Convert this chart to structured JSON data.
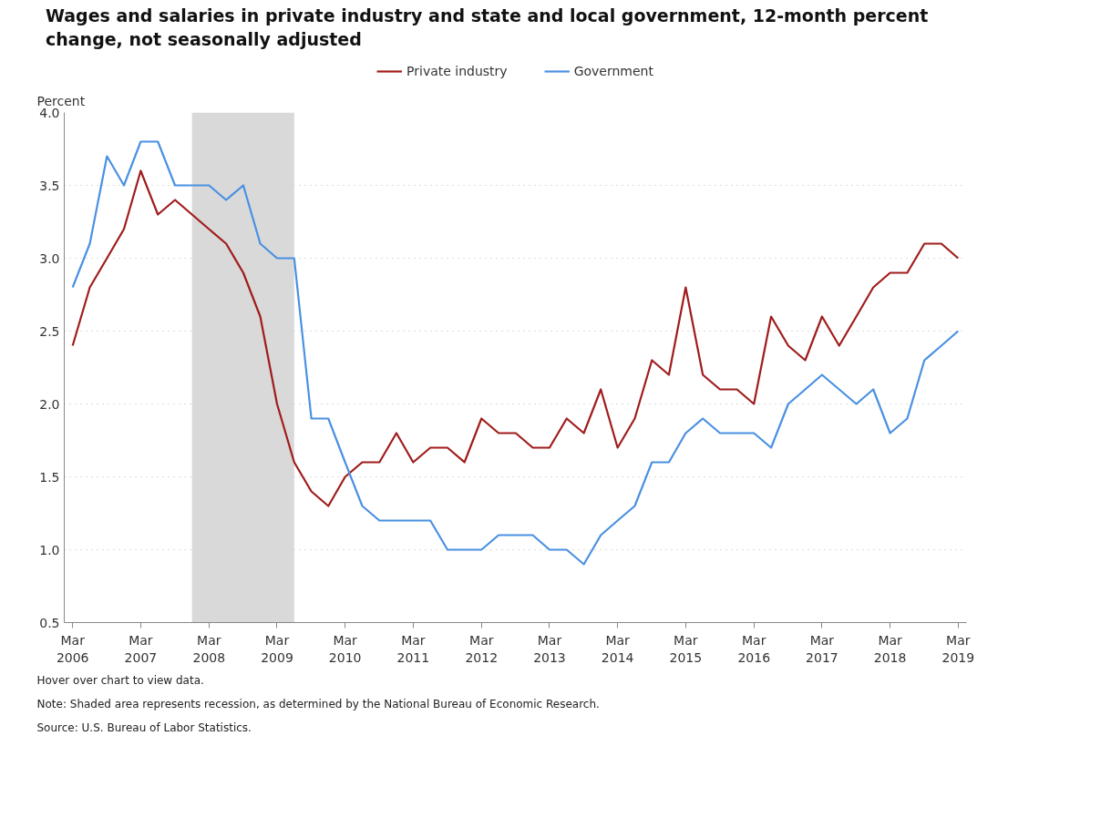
{
  "chart_data": {
    "type": "line",
    "title": "Wages and salaries in private industry and state and local government, 12-month percent change, not seasonally adjusted",
    "ylabel": "Percent",
    "x": [
      "2006-03",
      "2006-06",
      "2006-09",
      "2006-12",
      "2007-03",
      "2007-06",
      "2007-09",
      "2007-12",
      "2008-03",
      "2008-06",
      "2008-09",
      "2008-12",
      "2009-03",
      "2009-06",
      "2009-09",
      "2009-12",
      "2010-03",
      "2010-06",
      "2010-09",
      "2010-12",
      "2011-03",
      "2011-06",
      "2011-09",
      "2011-12",
      "2012-03",
      "2012-06",
      "2012-09",
      "2012-12",
      "2013-03",
      "2013-06",
      "2013-09",
      "2013-12",
      "2014-03",
      "2014-06",
      "2014-09",
      "2014-12",
      "2015-03",
      "2015-06",
      "2015-09",
      "2015-12",
      "2016-03",
      "2016-06",
      "2016-09",
      "2016-12",
      "2017-03",
      "2017-06",
      "2017-09",
      "2017-12",
      "2018-03",
      "2018-06",
      "2018-09",
      "2018-12",
      "2019-03"
    ],
    "series": [
      {
        "name": "Private industry",
        "color": "#a01c1c",
        "values": [
          2.4,
          2.8,
          3.0,
          3.2,
          3.6,
          3.3,
          3.4,
          3.3,
          3.2,
          3.1,
          2.9,
          2.6,
          2.0,
          1.6,
          1.4,
          1.3,
          1.5,
          1.6,
          1.6,
          1.8,
          1.6,
          1.7,
          1.7,
          1.6,
          1.9,
          1.8,
          1.8,
          1.7,
          1.7,
          1.9,
          1.8,
          2.1,
          1.7,
          1.9,
          2.3,
          2.2,
          2.8,
          2.2,
          2.1,
          2.1,
          2.0,
          2.6,
          2.4,
          2.3,
          2.6,
          2.4,
          2.6,
          2.8,
          2.9,
          2.9,
          3.1,
          3.1,
          3.0
        ]
      },
      {
        "name": "Government",
        "color": "#4a90e2",
        "values": [
          2.8,
          3.1,
          3.7,
          3.5,
          3.8,
          3.8,
          3.5,
          3.5,
          3.5,
          3.4,
          3.5,
          3.1,
          3.0,
          3.0,
          1.9,
          1.9,
          1.6,
          1.3,
          1.2,
          1.2,
          1.2,
          1.2,
          1.0,
          1.0,
          1.0,
          1.1,
          1.1,
          1.1,
          1.0,
          1.0,
          0.9,
          1.1,
          1.2,
          1.3,
          1.6,
          1.6,
          1.8,
          1.9,
          1.8,
          1.8,
          1.8,
          1.7,
          2.0,
          2.1,
          2.2,
          2.1,
          2.0,
          2.1,
          1.8,
          1.9,
          2.3,
          2.4,
          2.5
        ]
      }
    ],
    "xlim": [
      "2006-01-15",
      "2019-04-15"
    ],
    "xticks": [
      {
        "value": "2006-03",
        "label": "Mar\n2006"
      },
      {
        "value": "2007-03",
        "label": "Mar\n2007"
      },
      {
        "value": "2008-03",
        "label": "Mar\n2008"
      },
      {
        "value": "2009-03",
        "label": "Mar\n2009"
      },
      {
        "value": "2010-03",
        "label": "Mar\n2010"
      },
      {
        "value": "2011-03",
        "label": "Mar\n2011"
      },
      {
        "value": "2012-03",
        "label": "Mar\n2012"
      },
      {
        "value": "2013-03",
        "label": "Mar\n2013"
      },
      {
        "value": "2014-03",
        "label": "Mar\n2014"
      },
      {
        "value": "2015-03",
        "label": "Mar\n2015"
      },
      {
        "value": "2016-03",
        "label": "Mar\n2016"
      },
      {
        "value": "2017-03",
        "label": "Mar\n2017"
      },
      {
        "value": "2018-03",
        "label": "Mar\n2018"
      },
      {
        "value": "2019-03",
        "label": "Mar\n2019"
      }
    ],
    "ylim": [
      0.5,
      4.0
    ],
    "yticks": [
      {
        "value": 0.5,
        "label": "0.5"
      },
      {
        "value": 1.0,
        "label": "1.0"
      },
      {
        "value": 1.5,
        "label": "1.5"
      },
      {
        "value": 2.0,
        "label": "2.0"
      },
      {
        "value": 2.5,
        "label": "2.5"
      },
      {
        "value": 3.0,
        "label": "3.0"
      },
      {
        "value": 3.5,
        "label": "3.5"
      },
      {
        "value": 4.0,
        "label": "4.0"
      }
    ],
    "bands": [
      {
        "axis": "x",
        "from": "2007-12",
        "to": "2009-06",
        "color": "#d9d9d9"
      }
    ],
    "grid": "y",
    "legend": "top",
    "marker": "none",
    "line_style": "solid",
    "annotations": [
      "Hover over chart to view data.",
      "Note: Shaded area represents recession, as determined by the National Bureau of Economic Research.",
      "Source: U.S. Bureau of Labor Statistics."
    ]
  }
}
